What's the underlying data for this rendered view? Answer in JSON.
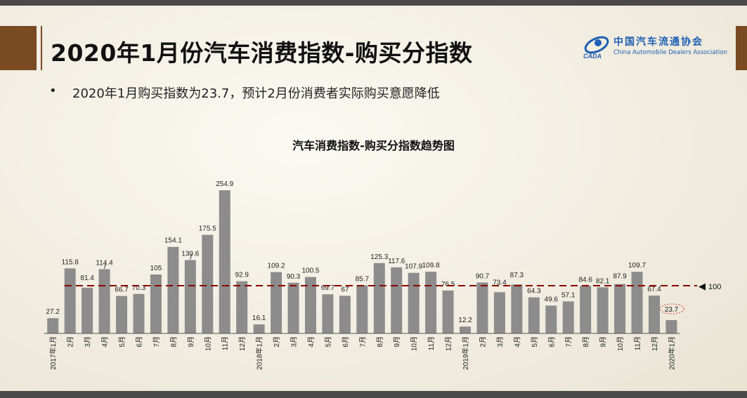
{
  "header": {
    "title": "2020年1月份汽车消费指数-购买分指数"
  },
  "logo": {
    "name_cn": "中国汽车流通协会",
    "name_en": "China Automobile Dealers Association",
    "mark_text": "CADA"
  },
  "bullet": {
    "marker": "•",
    "text": "2020年1月购买指数为23.7，预计2月份消费者实际购买意愿降低"
  },
  "colors": {
    "bar": "#8c8c8c",
    "reference_line": "#8b0000",
    "accent": "#7a4a22",
    "highlight_circle": "#e04040"
  },
  "chart_data": {
    "type": "bar",
    "title": "汽车消费指数-购买分指数趋势图",
    "categories": [
      "2017年1月",
      "2月",
      "3月",
      "4月",
      "5月",
      "6月",
      "7月",
      "8月",
      "9月",
      "10月",
      "11月",
      "12月",
      "2018年1月",
      "2月",
      "3月",
      "4月",
      "5月",
      "6月",
      "7月",
      "8月",
      "9月",
      "10月",
      "11月",
      "12月",
      "2019年1月",
      "2月",
      "3月",
      "4月",
      "5月",
      "6月",
      "7月",
      "8月",
      "9月",
      "10月",
      "11月",
      "12月",
      "2020年1月"
    ],
    "values": [
      27.2,
      115.8,
      81.4,
      114.4,
      66.7,
      70.3,
      105,
      154.1,
      130.6,
      175.5,
      254.9,
      92.9,
      16.1,
      109.2,
      90.3,
      100.5,
      69.7,
      67,
      85.7,
      125.3,
      117.6,
      107.9,
      109.8,
      76.5,
      12.2,
      90.7,
      73.4,
      87.3,
      64.3,
      49.6,
      57.1,
      84.6,
      82.1,
      87.9,
      109.7,
      67.4,
      23.7
    ],
    "value_labels": [
      "27.2",
      "115.8",
      "81.4",
      "114.4",
      "66.7",
      "70.3",
      "105",
      "154.1",
      "130.6",
      "175.5",
      "254.9",
      "92.9",
      "16.1",
      "109.2",
      "90.3",
      "100.5",
      "69.7",
      "67",
      "85.7",
      "125.3",
      "117.6",
      "107.9",
      "109.8",
      "76.5",
      "12.2",
      "90.7",
      "73.4",
      "87.3",
      "64.3",
      "49.6",
      "57.1",
      "84.6",
      "82.1",
      "87.9",
      "109.7",
      "67.4",
      "23.7"
    ],
    "reference_line": {
      "value": 100,
      "label": "100",
      "marker": "◀"
    },
    "highlighted_index": 36,
    "ylim": [
      0,
      270
    ],
    "grid": false,
    "legend": "none"
  }
}
